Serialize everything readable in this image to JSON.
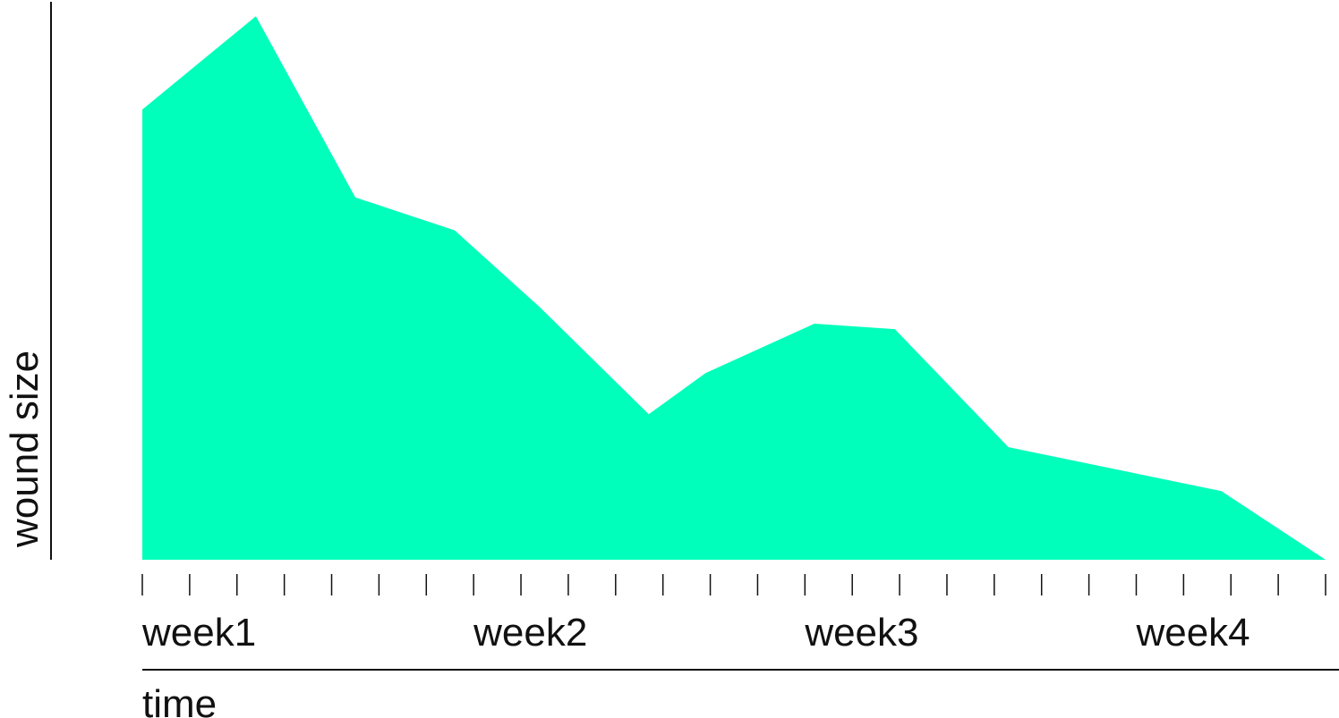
{
  "chart_data": {
    "type": "area",
    "title": "",
    "xlabel": "time",
    "ylabel": "wound size",
    "tick_labels": [
      "week1",
      "week2",
      "week3",
      "week4"
    ],
    "tick_label_positions": [
      0,
      7,
      14,
      21
    ],
    "minor_tick_count": 26,
    "x": [
      0,
      2.4,
      4.5,
      6.6,
      8.4,
      10.7,
      11.9,
      14.2,
      15.9,
      18.3,
      22.8,
      25
    ],
    "values": [
      82,
      99,
      66,
      60,
      46,
      26.5,
      34,
      43,
      42,
      20.5,
      12.5,
      0
    ],
    "xlim": [
      0,
      25
    ],
    "ylim": [
      0,
      100
    ],
    "grid": false,
    "legend": "none",
    "fill_color": "#00FFBB",
    "axis_color": "#111111"
  }
}
